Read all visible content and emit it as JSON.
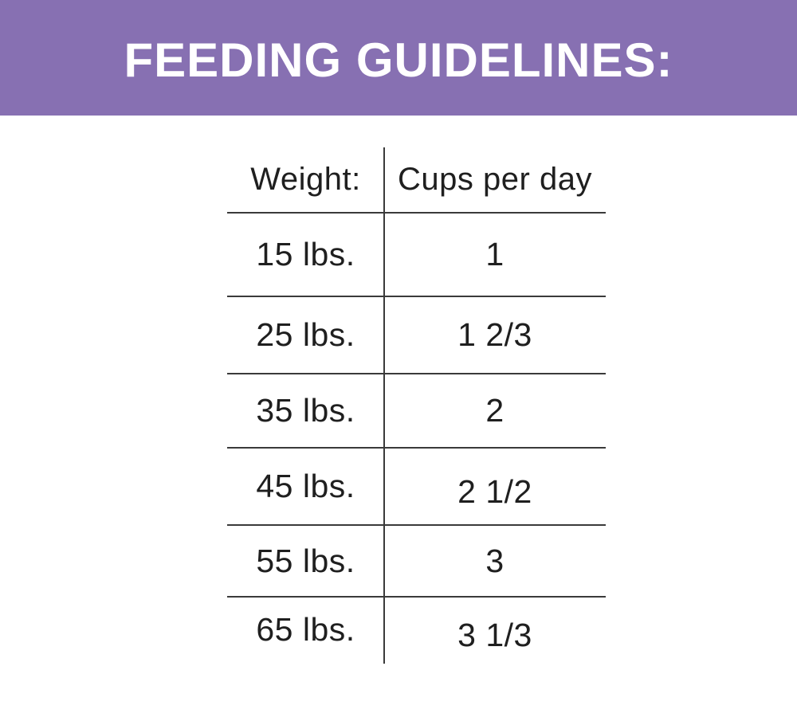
{
  "header": {
    "title": "FEEDING GUIDELINES:"
  },
  "colors": {
    "band_purple": "#8770b2",
    "title_white": "#ffffff",
    "table_text": "#1f1f1f",
    "table_lines": "#3a3a3a"
  },
  "chart_data": {
    "type": "table",
    "title": "FEEDING GUIDELINES:",
    "columns": [
      "Weight:",
      "Cups per day"
    ],
    "rows": [
      [
        "15 lbs.",
        "1"
      ],
      [
        "25 lbs.",
        "1 2/3"
      ],
      [
        "35 lbs.",
        "2"
      ],
      [
        "45 lbs.",
        "2 1/2"
      ],
      [
        "55 lbs.",
        "3"
      ],
      [
        "65 lbs.",
        "3 1/3"
      ]
    ],
    "weights_lbs": [
      15,
      25,
      35,
      45,
      55,
      65
    ],
    "cups_per_day_decimal": [
      1,
      1.67,
      2,
      2.5,
      3,
      3.33
    ],
    "layout": "two-column ruled table, vertical divider between columns, no outer border"
  }
}
